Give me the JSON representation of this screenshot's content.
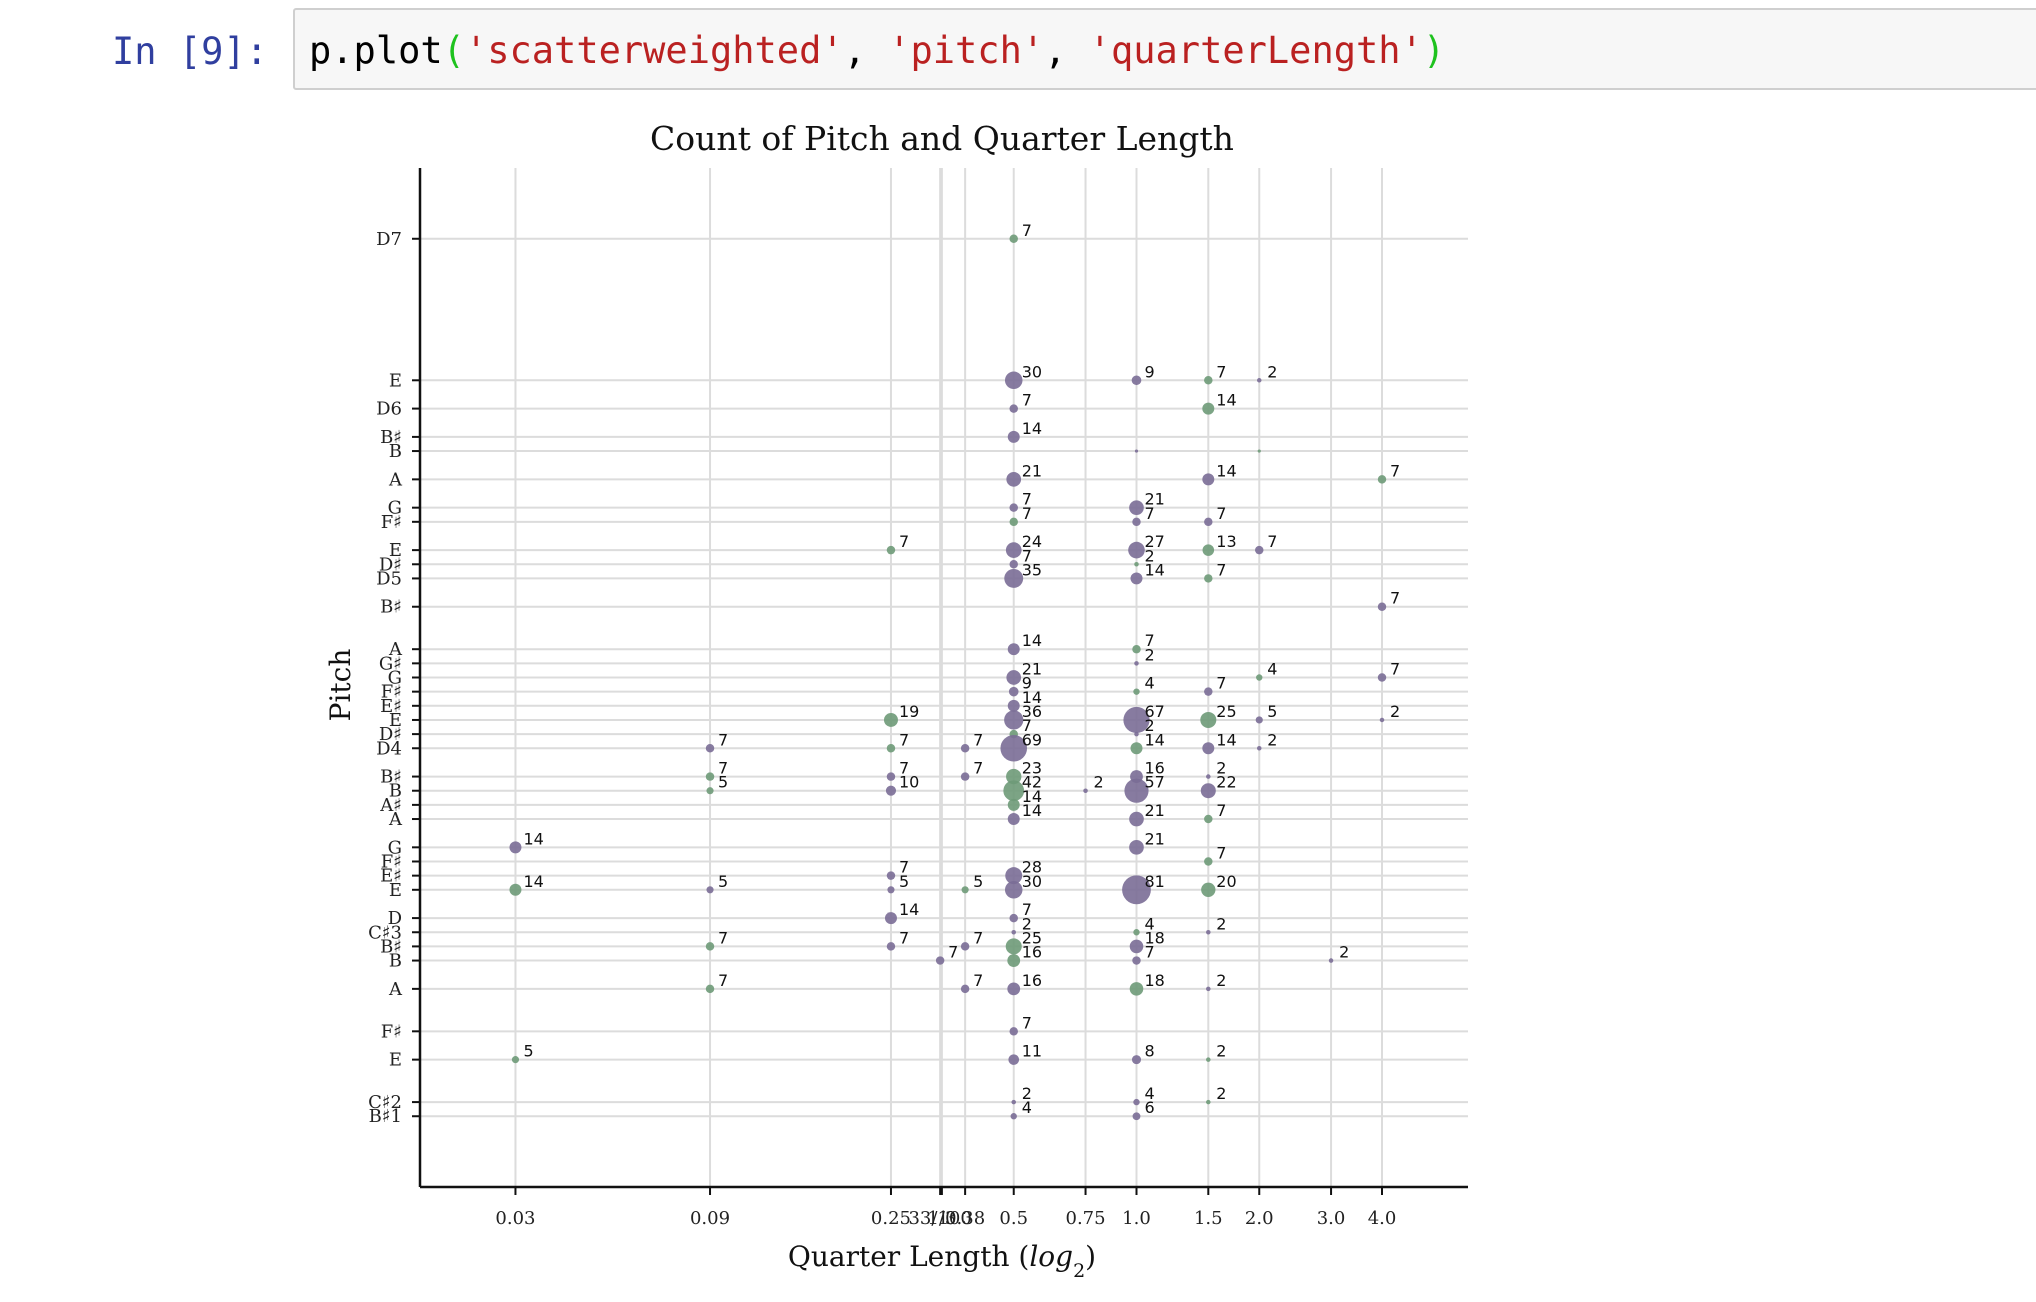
{
  "cell": {
    "prompt": "In [9]:",
    "code_tokens": [
      {
        "t": "p.plot",
        "c": ""
      },
      {
        "t": "(",
        "c": "paren"
      },
      {
        "t": "'scatterweighted'",
        "c": "str"
      },
      {
        "t": ", ",
        "c": ""
      },
      {
        "t": "'pitch'",
        "c": "str"
      },
      {
        "t": ", ",
        "c": ""
      },
      {
        "t": "'quarterLength'",
        "c": "str"
      },
      {
        "t": ")",
        "c": "paren"
      }
    ]
  },
  "chart_data": {
    "type": "scatter",
    "title": "Count of Pitch and Quarter Length",
    "xlabel": "Quarter Length (log2)",
    "ylabel": "Pitch",
    "xscale": "log2",
    "grid": true,
    "colors": [
      "#7a6d96",
      "#6e9a78"
    ],
    "x_ticks": [
      {
        "label": "0.03",
        "value": 0.03
      },
      {
        "label": "0.09",
        "value": 0.09
      },
      {
        "label": "0.25",
        "value": 0.25
      },
      {
        "label": "33/100",
        "value": 0.33
      },
      {
        "label": "1/3",
        "value": 0.3333
      },
      {
        "label": "0.38",
        "value": 0.38
      },
      {
        "label": "0.5",
        "value": 0.5
      },
      {
        "label": "0.75",
        "value": 0.75
      },
      {
        "label": "1.0",
        "value": 1.0
      },
      {
        "label": "1.5",
        "value": 1.5
      },
      {
        "label": "2.0",
        "value": 2.0
      },
      {
        "label": "3.0",
        "value": 3.0
      },
      {
        "label": "4.0",
        "value": 4.0
      }
    ],
    "y_ticks": [
      {
        "label": "D7",
        "value": 86
      },
      {
        "label": "E",
        "value": 76
      },
      {
        "label": "D6",
        "value": 74
      },
      {
        "label": "B♯",
        "value": 72
      },
      {
        "label": "B",
        "value": 71
      },
      {
        "label": "A",
        "value": 69
      },
      {
        "label": "G",
        "value": 67
      },
      {
        "label": "F♯",
        "value": 66
      },
      {
        "label": "E",
        "value": 64
      },
      {
        "label": "D♯",
        "value": 63
      },
      {
        "label": "D5",
        "value": 62
      },
      {
        "label": "B♯",
        "value": 60
      },
      {
        "label": "A",
        "value": 57
      },
      {
        "label": "G♯",
        "value": 56
      },
      {
        "label": "G",
        "value": 55
      },
      {
        "label": "F♯",
        "value": 54
      },
      {
        "label": "E♯",
        "value": 53
      },
      {
        "label": "E",
        "value": 52
      },
      {
        "label": "D♯",
        "value": 51
      },
      {
        "label": "D4",
        "value": 50
      },
      {
        "label": "B♯",
        "value": 48
      },
      {
        "label": "B",
        "value": 47
      },
      {
        "label": "A♯",
        "value": 46
      },
      {
        "label": "A",
        "value": 45
      },
      {
        "label": "G",
        "value": 43
      },
      {
        "label": "F♯",
        "value": 42
      },
      {
        "label": "E♯",
        "value": 41
      },
      {
        "label": "E",
        "value": 40
      },
      {
        "label": "D",
        "value": 38
      },
      {
        "label": "C♯3",
        "value": 37
      },
      {
        "label": "B♯",
        "value": 36
      },
      {
        "label": "B",
        "value": 35
      },
      {
        "label": "A",
        "value": 33
      },
      {
        "label": "F♯",
        "value": 30
      },
      {
        "label": "E",
        "value": 28
      },
      {
        "label": "C♯2",
        "value": 25
      },
      {
        "label": "B♯1",
        "value": 24
      }
    ],
    "points": [
      [
        0.5,
        86,
        7
      ],
      [
        0.5,
        76,
        30
      ],
      [
        1.0,
        76,
        9
      ],
      [
        1.5,
        76,
        7
      ],
      [
        2.0,
        76,
        2
      ],
      [
        0.5,
        74,
        7
      ],
      [
        1.5,
        74,
        14
      ],
      [
        0.5,
        72,
        14
      ],
      [
        1.0,
        71,
        1
      ],
      [
        2.0,
        71,
        1
      ],
      [
        0.5,
        69,
        21
      ],
      [
        1.5,
        69,
        14
      ],
      [
        4.0,
        69,
        7
      ],
      [
        0.5,
        67,
        7
      ],
      [
        1.0,
        67,
        21
      ],
      [
        0.5,
        66,
        7
      ],
      [
        1.0,
        66,
        7
      ],
      [
        1.5,
        66,
        7
      ],
      [
        0.25,
        64,
        7
      ],
      [
        0.5,
        64,
        24
      ],
      [
        1.0,
        64,
        27
      ],
      [
        1.5,
        64,
        13
      ],
      [
        2.0,
        64,
        7
      ],
      [
        0.5,
        63,
        7
      ],
      [
        1.0,
        63,
        2
      ],
      [
        0.5,
        62,
        35
      ],
      [
        1.0,
        62,
        14
      ],
      [
        1.5,
        62,
        7
      ],
      [
        4.0,
        60,
        7
      ],
      [
        0.5,
        57,
        14
      ],
      [
        1.0,
        57,
        7
      ],
      [
        1.0,
        56,
        2
      ],
      [
        0.5,
        55,
        21
      ],
      [
        2.0,
        55,
        4
      ],
      [
        4.0,
        55,
        7
      ],
      [
        0.5,
        54,
        9
      ],
      [
        1.0,
        54,
        4
      ],
      [
        1.5,
        54,
        7
      ],
      [
        0.5,
        53,
        14
      ],
      [
        0.25,
        52,
        19
      ],
      [
        0.5,
        52,
        36
      ],
      [
        1.0,
        52,
        67
      ],
      [
        1.5,
        52,
        25
      ],
      [
        2.0,
        52,
        5
      ],
      [
        4.0,
        52,
        2
      ],
      [
        0.5,
        51,
        7
      ],
      [
        1.0,
        51,
        2
      ],
      [
        0.09,
        50,
        7
      ],
      [
        0.25,
        50,
        7
      ],
      [
        0.38,
        50,
        7
      ],
      [
        0.5,
        50,
        69
      ],
      [
        1.0,
        50,
        14
      ],
      [
        1.5,
        50,
        14
      ],
      [
        2.0,
        50,
        2
      ],
      [
        0.09,
        48,
        7
      ],
      [
        0.25,
        48,
        7
      ],
      [
        0.38,
        48,
        7
      ],
      [
        0.5,
        48,
        23
      ],
      [
        1.0,
        48,
        16
      ],
      [
        1.5,
        48,
        2
      ],
      [
        0.09,
        47,
        5
      ],
      [
        0.25,
        47,
        10
      ],
      [
        0.75,
        47,
        2
      ],
      [
        0.5,
        47,
        42
      ],
      [
        1.0,
        47,
        57
      ],
      [
        1.5,
        47,
        22
      ],
      [
        0.5,
        46,
        14
      ],
      [
        0.5,
        45,
        14
      ],
      [
        1.0,
        45,
        21
      ],
      [
        1.5,
        45,
        7
      ],
      [
        0.03,
        43,
        14
      ],
      [
        1.0,
        43,
        21
      ],
      [
        1.5,
        42,
        7
      ],
      [
        0.25,
        41,
        7
      ],
      [
        0.5,
        41,
        28
      ],
      [
        0.03,
        40,
        14
      ],
      [
        0.09,
        40,
        5
      ],
      [
        0.25,
        40,
        5
      ],
      [
        0.38,
        40,
        5
      ],
      [
        0.5,
        40,
        30
      ],
      [
        1.0,
        40,
        81
      ],
      [
        1.5,
        40,
        20
      ],
      [
        0.25,
        38,
        14
      ],
      [
        0.5,
        38,
        7
      ],
      [
        1.0,
        37,
        4
      ],
      [
        1.5,
        37,
        2
      ],
      [
        0.5,
        37,
        2
      ],
      [
        0.09,
        36,
        7
      ],
      [
        0.25,
        36,
        7
      ],
      [
        0.38,
        36,
        7
      ],
      [
        0.5,
        36,
        25
      ],
      [
        1.0,
        36,
        18
      ],
      [
        0.33,
        35,
        7
      ],
      [
        0.5,
        35,
        16
      ],
      [
        1.0,
        35,
        7
      ],
      [
        3.0,
        35,
        2
      ],
      [
        0.09,
        33,
        7
      ],
      [
        0.38,
        33,
        7
      ],
      [
        0.5,
        33,
        16
      ],
      [
        1.0,
        33,
        18
      ],
      [
        1.5,
        33,
        2
      ],
      [
        0.5,
        30,
        7
      ],
      [
        0.03,
        28,
        5
      ],
      [
        0.5,
        28,
        11
      ],
      [
        1.0,
        28,
        8
      ],
      [
        1.5,
        28,
        2
      ],
      [
        0.5,
        25,
        2
      ],
      [
        1.0,
        25,
        4
      ],
      [
        1.5,
        25,
        2
      ],
      [
        0.5,
        24,
        4
      ],
      [
        1.0,
        24,
        6
      ]
    ]
  }
}
